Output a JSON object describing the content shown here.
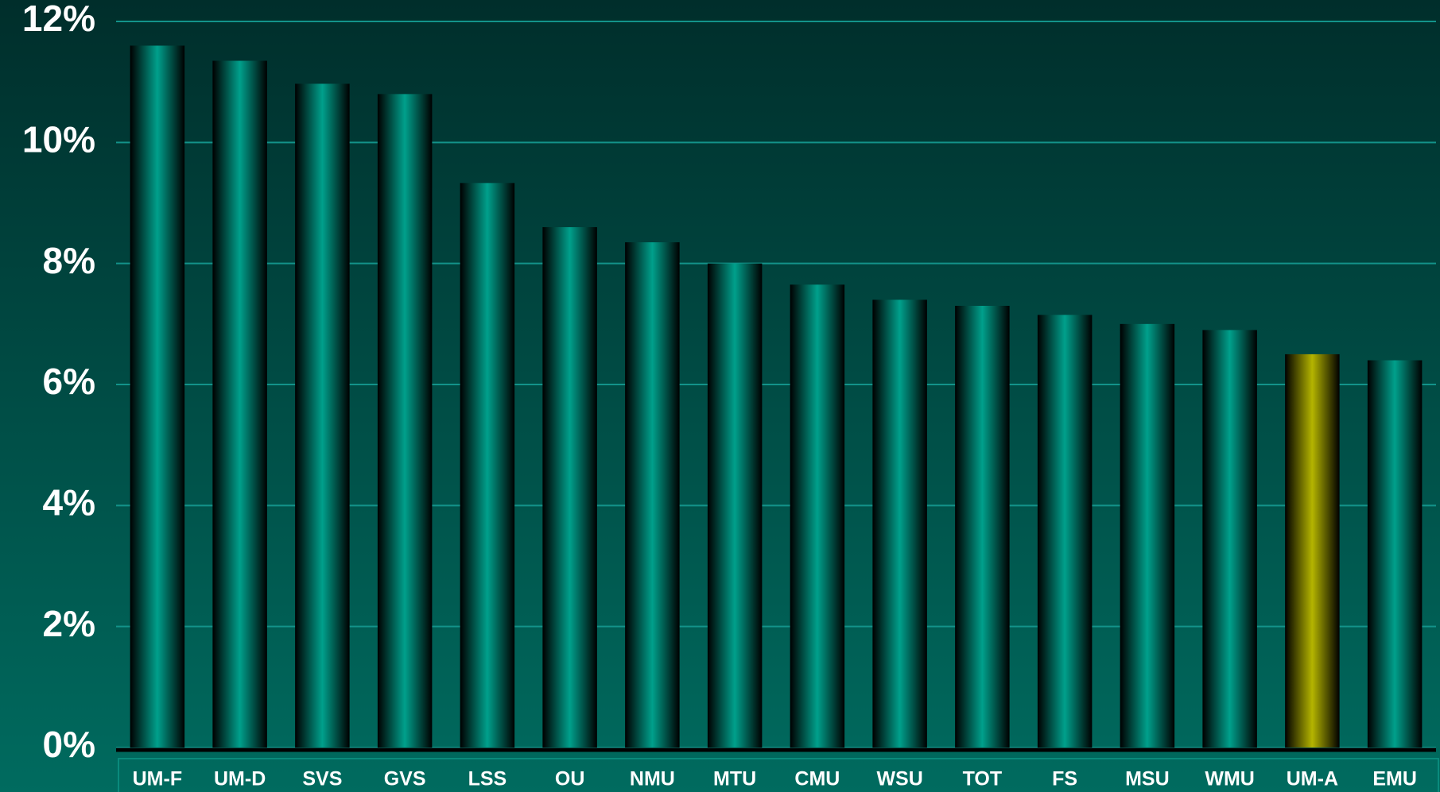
{
  "chart_data": {
    "type": "bar",
    "categories": [
      "UM-F",
      "UM-D",
      "SVS",
      "GVS",
      "LSS",
      "OU",
      "NMU",
      "MTU",
      "CMU",
      "WSU",
      "TOT",
      "FS",
      "MSU",
      "WMU",
      "UM-A",
      "EMU"
    ],
    "values": [
      11.6,
      11.35,
      10.97,
      10.8,
      9.33,
      8.6,
      8.35,
      8.0,
      7.65,
      7.4,
      7.3,
      7.15,
      7.0,
      6.9,
      6.5,
      6.4
    ],
    "colors": [
      "#00a08c",
      "#00a08c",
      "#00a08c",
      "#00a08c",
      "#00a08c",
      "#00a08c",
      "#00a08c",
      "#00a08c",
      "#00a08c",
      "#00a08c",
      "#00a08c",
      "#00a08c",
      "#00a08c",
      "#00a08c",
      "#b4b400",
      "#00a08c"
    ],
    "ylim": [
      0,
      12
    ],
    "yticks": [
      {
        "value": 0,
        "label": "0%"
      },
      {
        "value": 2,
        "label": "2%"
      },
      {
        "value": 4,
        "label": "4%"
      },
      {
        "value": 6,
        "label": "6%"
      },
      {
        "value": 8,
        "label": "8%"
      },
      {
        "value": 10,
        "label": "10%"
      },
      {
        "value": 12,
        "label": "12%"
      }
    ],
    "grid": true
  }
}
